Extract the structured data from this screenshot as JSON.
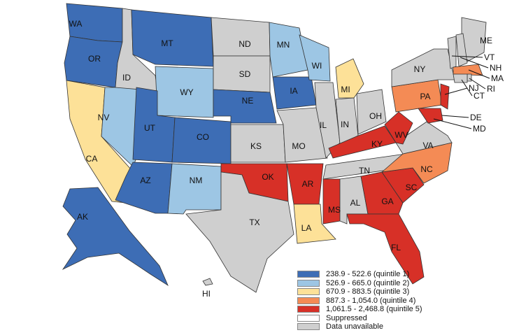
{
  "colors": {
    "quintile1": "#3d6db5",
    "quintile2": "#9dc6e4",
    "quintile3": "#fde198",
    "quintile4": "#f48b55",
    "quintile5": "#d73027",
    "suppressed": "#ffffff",
    "unavailable": "#cfcfcf"
  },
  "states": [
    {
      "abbr": "WA",
      "class": "quintile1"
    },
    {
      "abbr": "OR",
      "class": "quintile1"
    },
    {
      "abbr": "CA",
      "class": "quintile3"
    },
    {
      "abbr": "NV",
      "class": "quintile2"
    },
    {
      "abbr": "ID",
      "class": "unavailable"
    },
    {
      "abbr": "MT",
      "class": "quintile1"
    },
    {
      "abbr": "WY",
      "class": "quintile2"
    },
    {
      "abbr": "UT",
      "class": "quintile1"
    },
    {
      "abbr": "CO",
      "class": "quintile1"
    },
    {
      "abbr": "AZ",
      "class": "quintile1"
    },
    {
      "abbr": "NM",
      "class": "quintile2"
    },
    {
      "abbr": "ND",
      "class": "unavailable"
    },
    {
      "abbr": "SD",
      "class": "unavailable"
    },
    {
      "abbr": "NE",
      "class": "quintile1"
    },
    {
      "abbr": "KS",
      "class": "unavailable"
    },
    {
      "abbr": "OK",
      "class": "quintile5"
    },
    {
      "abbr": "TX",
      "class": "unavailable"
    },
    {
      "abbr": "MN",
      "class": "quintile2"
    },
    {
      "abbr": "IA",
      "class": "quintile1"
    },
    {
      "abbr": "MO",
      "class": "unavailable"
    },
    {
      "abbr": "AR",
      "class": "quintile5"
    },
    {
      "abbr": "LA",
      "class": "quintile3"
    },
    {
      "abbr": "WI",
      "class": "quintile2"
    },
    {
      "abbr": "IL",
      "class": "unavailable"
    },
    {
      "abbr": "MI",
      "class": "quintile3"
    },
    {
      "abbr": "IN",
      "class": "unavailable"
    },
    {
      "abbr": "OH",
      "class": "unavailable"
    },
    {
      "abbr": "KY",
      "class": "quintile5"
    },
    {
      "abbr": "TN",
      "class": "unavailable"
    },
    {
      "abbr": "MS",
      "class": "quintile5"
    },
    {
      "abbr": "AL",
      "class": "unavailable"
    },
    {
      "abbr": "GA",
      "class": "quintile5"
    },
    {
      "abbr": "FL",
      "class": "quintile5"
    },
    {
      "abbr": "SC",
      "class": "quintile5"
    },
    {
      "abbr": "NC",
      "class": "quintile4"
    },
    {
      "abbr": "VA",
      "class": "unavailable"
    },
    {
      "abbr": "WV",
      "class": "quintile5"
    },
    {
      "abbr": "PA",
      "class": "quintile4"
    },
    {
      "abbr": "NY",
      "class": "unavailable"
    },
    {
      "abbr": "NJ",
      "class": "quintile5"
    },
    {
      "abbr": "MD",
      "class": "quintile5"
    },
    {
      "abbr": "DE",
      "class": "quintile5"
    },
    {
      "abbr": "ME",
      "class": "unavailable"
    },
    {
      "abbr": "VT",
      "class": "unavailable"
    },
    {
      "abbr": "NH",
      "class": "unavailable"
    },
    {
      "abbr": "MA",
      "class": "quintile4"
    },
    {
      "abbr": "RI",
      "class": "unavailable"
    },
    {
      "abbr": "CT",
      "class": "unavailable"
    },
    {
      "abbr": "AK",
      "class": "quintile1"
    },
    {
      "abbr": "HI",
      "class": "unavailable"
    }
  ],
  "legend": [
    {
      "label": "238.9 - 522.6 (quintile 1)",
      "class": "quintile1"
    },
    {
      "label": "526.9 - 665.0 (quintile 2)",
      "class": "quintile2"
    },
    {
      "label": "670.9 - 883.5 (quintile 3)",
      "class": "quintile3"
    },
    {
      "label": "887.3 - 1,054.0 (quintile 4)",
      "class": "quintile4"
    },
    {
      "label": "1,061.5 - 2,468.8 (quintile 5)",
      "class": "quintile5"
    },
    {
      "label": "Suppressed",
      "class": "suppressed"
    },
    {
      "label": "Data unavailable",
      "class": "unavailable"
    }
  ]
}
